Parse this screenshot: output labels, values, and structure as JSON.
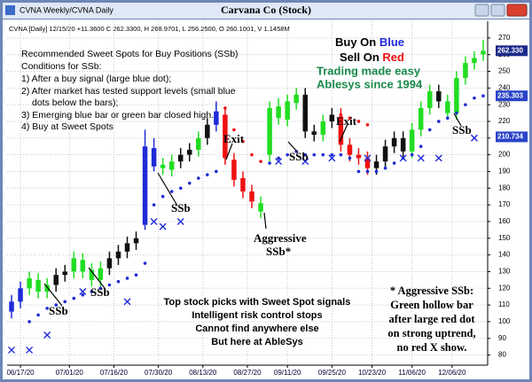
{
  "window_title": "CVNA Weekly/CVNA Daily",
  "chart_data": {
    "type": "candlestick",
    "title": "Carvana Co (Stock)",
    "info": "CVNA [Daily] 12/15/20 +11.3600 C 262.3300, H 268.9701, L 256.2500, O 260.1001, V 1.1458M",
    "open": [
      106,
      112,
      120,
      125,
      118,
      122,
      128,
      130,
      137,
      131,
      125,
      132,
      138,
      142,
      147,
      158,
      204,
      194,
      191,
      196,
      200,
      203,
      210,
      218,
      224,
      197,
      186,
      178,
      171,
      200,
      229,
      221,
      231,
      236,
      214,
      212,
      220,
      223,
      206,
      200,
      198,
      192,
      196,
      205,
      210,
      202,
      215,
      228,
      238,
      232,
      225,
      246,
      255,
      260.1001
    ],
    "high": [
      116,
      124,
      130,
      129,
      126,
      132,
      134,
      142,
      141,
      135,
      136,
      142,
      146,
      151,
      154,
      215,
      210,
      198,
      200,
      204,
      207,
      214,
      222,
      232,
      228,
      201,
      190,
      182,
      175,
      232,
      234,
      236,
      240,
      240,
      218,
      224,
      228,
      228,
      210,
      204,
      202,
      200,
      209,
      214,
      214,
      219,
      232,
      242,
      242,
      236,
      250,
      259,
      262,
      268.9701
    ],
    "low": [
      102,
      108,
      116,
      114,
      114,
      118,
      124,
      126,
      126,
      121,
      121,
      128,
      134,
      138,
      143,
      155,
      190,
      188,
      187,
      192,
      196,
      199,
      206,
      214,
      194,
      181,
      174,
      168,
      162,
      196,
      218,
      217,
      227,
      210,
      208,
      208,
      216,
      202,
      196,
      194,
      188,
      188,
      192,
      201,
      198,
      198,
      211,
      224,
      228,
      221,
      221,
      242,
      251,
      256.25
    ],
    "close": [
      112,
      120,
      126,
      118,
      122,
      128,
      130,
      138,
      130,
      125,
      132,
      138,
      142,
      147,
      150,
      205,
      193,
      192,
      196,
      200,
      203,
      210,
      218,
      226,
      198,
      185,
      178,
      172,
      166,
      228,
      222,
      232,
      236,
      214,
      212,
      220,
      224,
      206,
      200,
      198,
      192,
      196,
      205,
      210,
      202,
      215,
      228,
      238,
      232,
      225,
      246,
      255,
      258,
      262.33
    ],
    "candle_colors": [
      "#1f2bd6",
      "#1f2bd6",
      "#22dd22",
      "#22dd22",
      "#22dd22",
      "#111111",
      "#111111",
      "#22dd22",
      "#22dd22",
      "#22dd22",
      "#22dd22",
      "#111111",
      "#111111",
      "#111111",
      "#111111",
      "#1f2bd6",
      "#1f2bd6",
      "#22dd22",
      "#22dd22",
      "#111111",
      "#111111",
      "#22dd22",
      "#111111",
      "#1f2bd6",
      "#ee1111",
      "#ee1111",
      "#ee1111",
      "#ee1111",
      "#22dd22",
      "#22dd22",
      "#22dd22",
      "#22dd22",
      "#22dd22",
      "#111111",
      "#111111",
      "#22dd22",
      "#111111",
      "#ee1111",
      "#ee1111",
      "#ee1111",
      "#ee1111",
      "#111111",
      "#111111",
      "#111111",
      "#111111",
      "#22dd22",
      "#22dd22",
      "#22dd22",
      "#111111",
      "#22dd22",
      "#22dd22",
      "#22dd22",
      "#22dd22",
      "#22dd22"
    ],
    "support_dots": {
      "color": "#1f2bd6",
      "values": [
        null,
        null,
        100,
        104,
        108,
        110,
        112,
        114,
        116,
        118,
        120,
        122,
        124,
        126,
        128,
        135,
        170,
        175,
        178,
        180,
        183,
        186,
        188,
        190,
        null,
        null,
        null,
        null,
        null,
        195,
        198,
        200,
        202,
        200,
        200,
        200,
        200,
        200,
        198,
        190,
        190,
        190,
        192,
        195,
        198,
        200,
        205,
        215,
        220,
        222,
        225,
        230,
        234,
        235.3
      ]
    },
    "stop_dots": {
      "color": "#ee1111",
      "values": [
        null,
        null,
        null,
        null,
        null,
        null,
        null,
        null,
        null,
        null,
        null,
        null,
        null,
        null,
        null,
        null,
        null,
        null,
        null,
        null,
        null,
        null,
        null,
        null,
        228,
        215,
        208,
        200,
        196,
        null,
        null,
        null,
        null,
        null,
        null,
        null,
        null,
        224,
        222,
        220,
        218,
        null,
        null,
        null,
        null,
        null,
        null,
        null,
        null,
        null,
        null,
        null,
        null,
        null
      ]
    },
    "x_marks": {
      "color": "#1f2bd6",
      "values": [
        83,
        null,
        83,
        null,
        92,
        null,
        null,
        null,
        118,
        null,
        null,
        null,
        null,
        112,
        null,
        null,
        160,
        157,
        null,
        160,
        null,
        null,
        null,
        null,
        null,
        null,
        null,
        null,
        null,
        null,
        196,
        null,
        null,
        196,
        null,
        null,
        198,
        null,
        null,
        null,
        198,
        null,
        null,
        null,
        198,
        null,
        198,
        null,
        198,
        null,
        null,
        null,
        210,
        null
      ]
    },
    "ylim": [
      75,
      280
    ],
    "yticks": [
      80,
      90,
      100,
      110,
      120,
      130,
      140,
      150,
      160,
      170,
      180,
      190,
      200,
      210,
      220,
      230,
      240,
      250,
      260,
      270
    ],
    "xlim": [
      0,
      54
    ],
    "xticks": [
      {
        "value": 1.5,
        "label": "06/17/20"
      },
      {
        "value": 7,
        "label": "07/01/20"
      },
      {
        "value": 12,
        "label": "07/16/20"
      },
      {
        "value": 17,
        "label": "07/30/20"
      },
      {
        "value": 22,
        "label": "08/13/20"
      },
      {
        "value": 27,
        "label": "08/27/20"
      },
      {
        "value": 31.5,
        "label": "09/11/20"
      },
      {
        "value": 36.5,
        "label": "09/25/20"
      },
      {
        "value": 41,
        "label": "10/23/20"
      },
      {
        "value": 45.5,
        "label": "11/06/20"
      },
      {
        "value": 50,
        "label": "12/06/20"
      }
    ],
    "price_tags": [
      {
        "value": 262.33,
        "label": "262.330",
        "color": "#1b2a8a"
      },
      {
        "value": 235.303,
        "label": "235.303",
        "color": "#2a44c8"
      },
      {
        "value": 210.734,
        "label": "210.734",
        "color": "#2a44c8"
      }
    ],
    "grid": true
  },
  "instructions": [
    "Recommended Sweet Spots for Buy Positions (SSb)",
    "Conditions for SSb:",
    "1) After a buy signal (large blue dot);",
    "2) After market has tested support levels (small blue",
    "dots below the bars);",
    "3) Emerging blue bar or green bar closed high.",
    "4) Buy at Sweet Spots"
  ],
  "slogan": {
    "buy": "Buy On ",
    "buy_color": "Blue",
    "sell": "Sell On ",
    "sell_color": "Red",
    "line3": "Trading made easy",
    "line4": "Ablesys since 1994"
  },
  "labels": {
    "ssb": "SSb",
    "exit": "Exit",
    "aggressive": "Aggressive",
    "aggressive_ssb": "SSb*"
  },
  "promo": [
    "Top stock picks with Sweet Spot signals",
    "Intelligent risk control stops",
    "Cannot find anywhere else",
    "But here at AbleSys"
  ],
  "note": [
    "* Aggressive SSb:",
    "Green hollow bar",
    "after large red dot",
    "on strong uptrend,",
    "no red X show."
  ]
}
